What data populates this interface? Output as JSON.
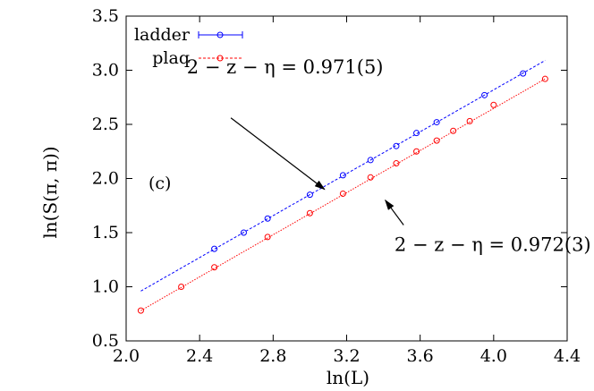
{
  "chart_data": {
    "type": "scatter",
    "title": "",
    "xlabel": "ln(L)",
    "ylabel": "ln(S(π, π))",
    "xlim": [
      2.0,
      4.4
    ],
    "ylim": [
      0.5,
      3.5
    ],
    "xticks": [
      "2.0",
      "2.4",
      "2.8",
      "3.2",
      "3.6",
      "4.0",
      "4.4"
    ],
    "yticks": [
      "0.5",
      "1.0",
      "1.5",
      "2.0",
      "2.5",
      "3.0",
      "3.5"
    ],
    "grid": false,
    "legend_position": "top-left",
    "panel_label": "(c)",
    "series": [
      {
        "name": "ladder",
        "color": "#0000ff",
        "marker": "circle",
        "fit_line": {
          "style": "dashed",
          "x_range": [
            2.08,
            4.28
          ],
          "y_range": [
            0.96,
            3.09
          ]
        },
        "x": [
          2.48,
          2.64,
          2.77,
          3.0,
          3.18,
          3.33,
          3.47,
          3.58,
          3.69,
          3.95,
          4.16
        ],
        "y": [
          1.35,
          1.5,
          1.63,
          1.85,
          2.03,
          2.17,
          2.3,
          2.42,
          2.52,
          2.77,
          2.97
        ]
      },
      {
        "name": "plaq",
        "color": "#ff0000",
        "marker": "circle",
        "fit_line": {
          "style": "dotted",
          "x_range": [
            2.08,
            4.28
          ],
          "y_range": [
            0.78,
            2.92
          ]
        },
        "x": [
          2.08,
          2.3,
          2.48,
          2.77,
          3.0,
          3.18,
          3.33,
          3.47,
          3.58,
          3.69,
          3.78,
          3.87,
          4.0,
          4.28
        ],
        "y": [
          0.78,
          1.0,
          1.18,
          1.46,
          1.68,
          1.86,
          2.01,
          2.14,
          2.25,
          2.35,
          2.44,
          2.53,
          2.68,
          2.92
        ]
      }
    ],
    "annotations": [
      {
        "text": "2 − z − η = 0.971(5)",
        "x": 2.33,
        "y": 2.97,
        "arrow_to": [
          3.08,
          1.9
        ],
        "arrow_from": [
          2.57,
          2.56
        ]
      },
      {
        "text": "2 − z − η = 0.972(3)",
        "x": 3.46,
        "y": 1.33,
        "arrow_to": [
          3.41,
          1.8
        ],
        "arrow_from": [
          3.51,
          1.57
        ]
      }
    ]
  }
}
